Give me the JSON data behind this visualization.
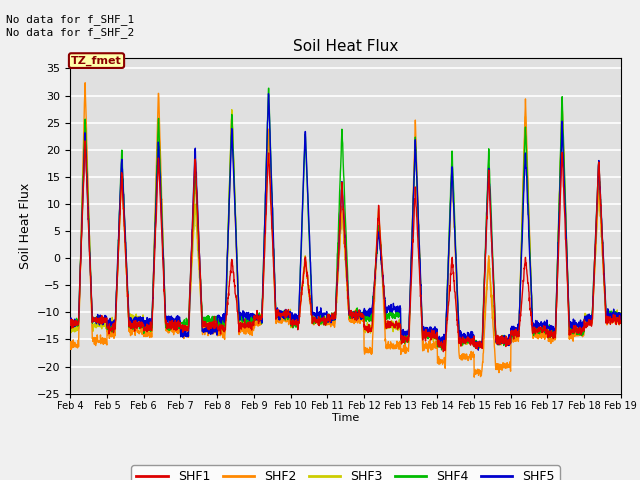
{
  "title": "Soil Heat Flux",
  "ylabel": "Soil Heat Flux",
  "xlabel": "Time",
  "ylim": [
    -25,
    37
  ],
  "yticks": [
    -25,
    -20,
    -15,
    -10,
    -5,
    0,
    5,
    10,
    15,
    20,
    25,
    30,
    35
  ],
  "annotation_text": "No data for f_SHF_1\nNo data for f_SHF_2",
  "box_label": "TZ_fmet",
  "colors": {
    "SHF1": "#dd0000",
    "SHF2": "#ff8800",
    "SHF3": "#cccc00",
    "SHF4": "#00bb00",
    "SHF5": "#0000cc"
  },
  "legend_labels": [
    "SHF1",
    "SHF2",
    "SHF3",
    "SHF4",
    "SHF5"
  ],
  "background_color": "#e0e0e0",
  "grid_color": "#ffffff",
  "xtick_labels": [
    "Feb 4",
    "Feb 5",
    "Feb 6",
    "Feb 7",
    "Feb 8",
    "Feb 9",
    "Feb 10",
    "Feb 11",
    "Feb 12",
    "Feb 13",
    "Feb 14",
    "Feb 15",
    "Feb 16",
    "Feb 17",
    "Feb 18",
    "Feb 19"
  ],
  "num_days": 15,
  "points_per_day": 144,
  "daily_peaks_shf1": [
    22,
    16,
    19,
    19,
    0,
    20,
    0,
    14,
    9,
    13,
    0,
    16,
    0,
    20,
    18
  ],
  "daily_mins_shf1": [
    -12,
    -13,
    -13,
    -13,
    -13,
    -11,
    -12,
    -11,
    -13,
    -15,
    -16,
    -16,
    -14,
    -14,
    -12
  ],
  "daily_peaks_shf2": [
    33,
    17,
    31,
    15,
    27,
    24,
    0,
    10,
    9,
    25,
    18,
    0,
    29,
    29,
    14
  ],
  "daily_mins_shf2": [
    -16,
    -14,
    -14,
    -14,
    -14,
    -12,
    -12,
    -12,
    -17,
    -17,
    -19,
    -21,
    -15,
    -15,
    -12
  ],
  "daily_peaks_shf3": [
    25,
    15,
    25,
    10,
    28,
    24,
    0,
    9,
    9,
    22,
    17,
    0,
    27,
    28,
    13
  ],
  "daily_mins_shf3": [
    -13,
    -12,
    -13,
    -13,
    -13,
    -11,
    -12,
    -11,
    -13,
    -15,
    -16,
    -16,
    -14,
    -14,
    -11
  ],
  "daily_peaks_shf4": [
    26,
    20,
    26,
    17,
    27,
    32,
    23,
    24,
    6,
    22,
    20,
    20,
    25,
    30,
    18
  ],
  "daily_mins_shf4": [
    -12,
    -13,
    -13,
    -12,
    -12,
    -11,
    -12,
    -11,
    -11,
    -15,
    -16,
    -16,
    -14,
    -14,
    -11
  ],
  "daily_peaks_shf5": [
    23,
    19,
    22,
    21,
    24,
    31,
    24,
    14,
    5,
    22,
    17,
    17,
    20,
    25,
    18
  ],
  "daily_mins_shf5": [
    -12,
    -12,
    -12,
    -14,
    -11,
    -11,
    -11,
    -11,
    -10,
    -14,
    -15,
    -16,
    -13,
    -13,
    -11
  ]
}
